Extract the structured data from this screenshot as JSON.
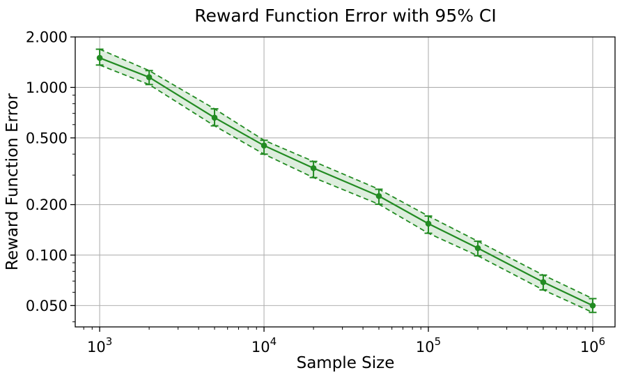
{
  "chart_data": {
    "type": "line",
    "title": "Reward Function Error with 95% CI",
    "xlabel": "Sample Size",
    "ylabel": "Reward Function Error",
    "x_scale": "log",
    "y_scale": "log",
    "x": [
      1000,
      2000,
      5000,
      10000,
      20000,
      50000,
      100000,
      200000,
      500000,
      1000000
    ],
    "series": [
      {
        "name": "Reward Function Error",
        "values": [
          1.5,
          1.15,
          0.66,
          0.45,
          0.33,
          0.225,
          0.154,
          0.11,
          0.069,
          0.05
        ],
        "marker": "circle",
        "linestyle": "solid"
      }
    ],
    "ci": {
      "level": "95%",
      "lower": [
        1.36,
        1.04,
        0.59,
        0.4,
        0.29,
        0.201,
        0.135,
        0.099,
        0.062,
        0.0455
      ],
      "upper": [
        1.69,
        1.26,
        0.745,
        0.484,
        0.362,
        0.247,
        0.171,
        0.121,
        0.076,
        0.055
      ],
      "edge_style": "dashed",
      "has_caps": true
    },
    "axes": {
      "xlim": [
        710,
        1367000
      ],
      "ylim": [
        0.0373,
        2.0
      ],
      "x_major_ticks": [
        1000,
        10000,
        100000,
        1000000
      ],
      "x_tick_base": "10",
      "x_tick_exponents": [
        "3",
        "4",
        "5",
        "6"
      ],
      "x_minor_ticks": [
        800,
        900,
        2000,
        3000,
        4000,
        5000,
        6000,
        7000,
        8000,
        9000,
        20000,
        30000,
        40000,
        50000,
        60000,
        70000,
        80000,
        90000,
        200000,
        300000,
        400000,
        500000,
        600000,
        700000,
        800000,
        900000
      ],
      "y_major_ticks": [
        2.0,
        1.0,
        0.5,
        0.2,
        0.1,
        0.05
      ],
      "y_tick_labels": [
        "2.000",
        "1.000",
        "0.500",
        "0.200",
        "0.100",
        "0.050"
      ],
      "y_minor_ticks": [
        0.9,
        0.8,
        0.7,
        0.6,
        0.4,
        0.3,
        0.09,
        0.08,
        0.07,
        0.06,
        0.04
      ],
      "grid": true,
      "legend": "none"
    },
    "colors": {
      "line": "#228B22",
      "band": "rgba(34,139,34,0.15)",
      "grid": "#b0b0b0",
      "spine": "#000000",
      "text": "#000000",
      "background": "#ffffff"
    }
  }
}
